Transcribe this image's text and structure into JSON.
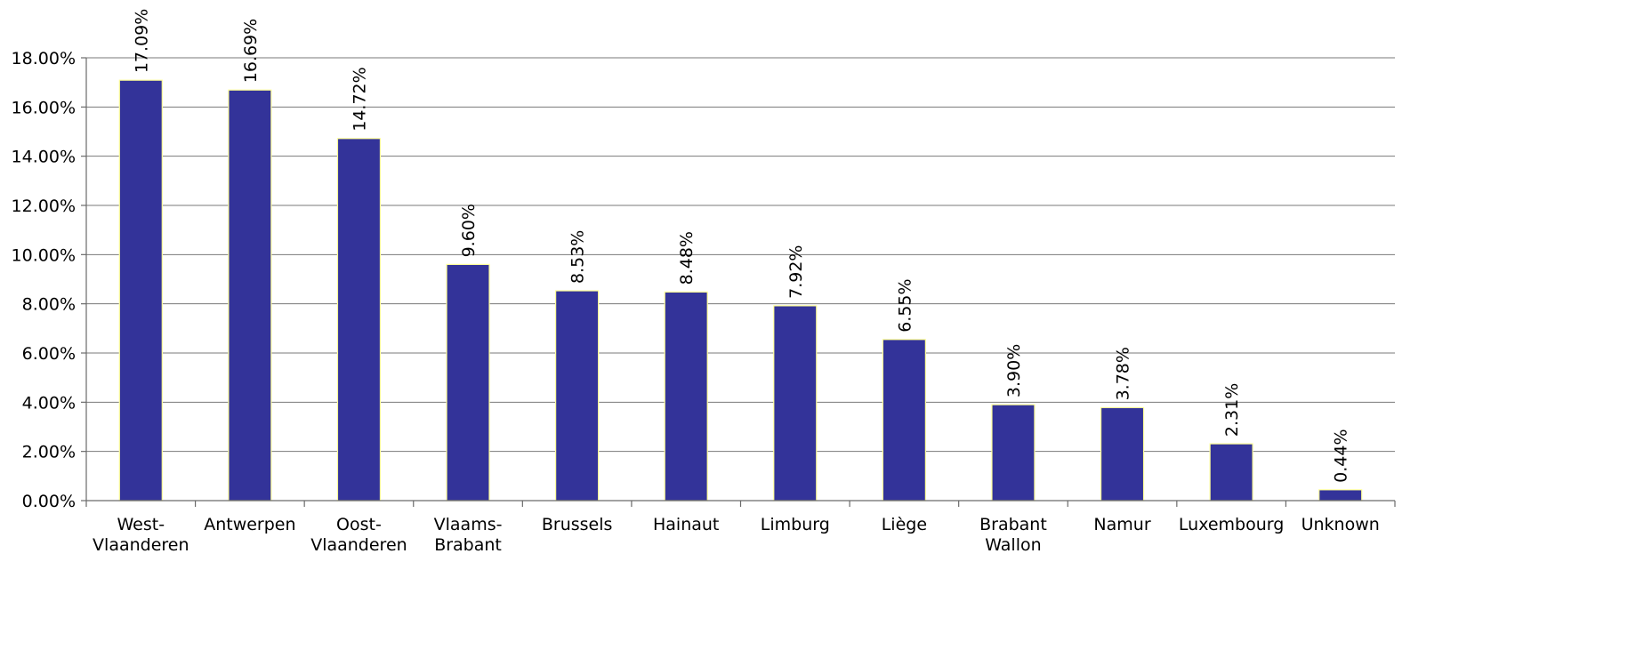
{
  "chart_data": {
    "type": "bar",
    "title": "",
    "xlabel": "",
    "ylabel": "",
    "ylim": [
      0,
      0.18
    ],
    "y_ticks": [
      0,
      0.02,
      0.04,
      0.06,
      0.08,
      0.1,
      0.12,
      0.14,
      0.16,
      0.18
    ],
    "y_tick_labels": [
      "0.00%",
      "2.00%",
      "4.00%",
      "6.00%",
      "8.00%",
      "10.00%",
      "12.00%",
      "14.00%",
      "16.00%",
      "18.00%"
    ],
    "grid": true,
    "legend": "none",
    "categories": [
      [
        "West-",
        "Vlaanderen"
      ],
      [
        "Antwerpen"
      ],
      [
        "Oost-",
        "Vlaanderen"
      ],
      [
        "Vlaams-",
        "Brabant"
      ],
      [
        "Brussels"
      ],
      [
        "Hainaut"
      ],
      [
        "Limburg"
      ],
      [
        "Liège"
      ],
      [
        "Brabant",
        "Wallon"
      ],
      [
        "Namur"
      ],
      [
        "Luxembourg"
      ],
      [
        "Unknown"
      ]
    ],
    "values": [
      0.1709,
      0.1669,
      0.1472,
      0.096,
      0.0853,
      0.0848,
      0.0792,
      0.0655,
      0.039,
      0.0378,
      0.0231,
      0.0044
    ],
    "data_labels": [
      "17.09%",
      "16.69%",
      "14.72%",
      "9.60%",
      "8.53%",
      "8.48%",
      "7.92%",
      "6.55%",
      "3.90%",
      "3.78%",
      "2.31%",
      "0.44%"
    ],
    "colors": {
      "bar_fill": "#333399",
      "bar_stroke": "#ffff99"
    }
  }
}
